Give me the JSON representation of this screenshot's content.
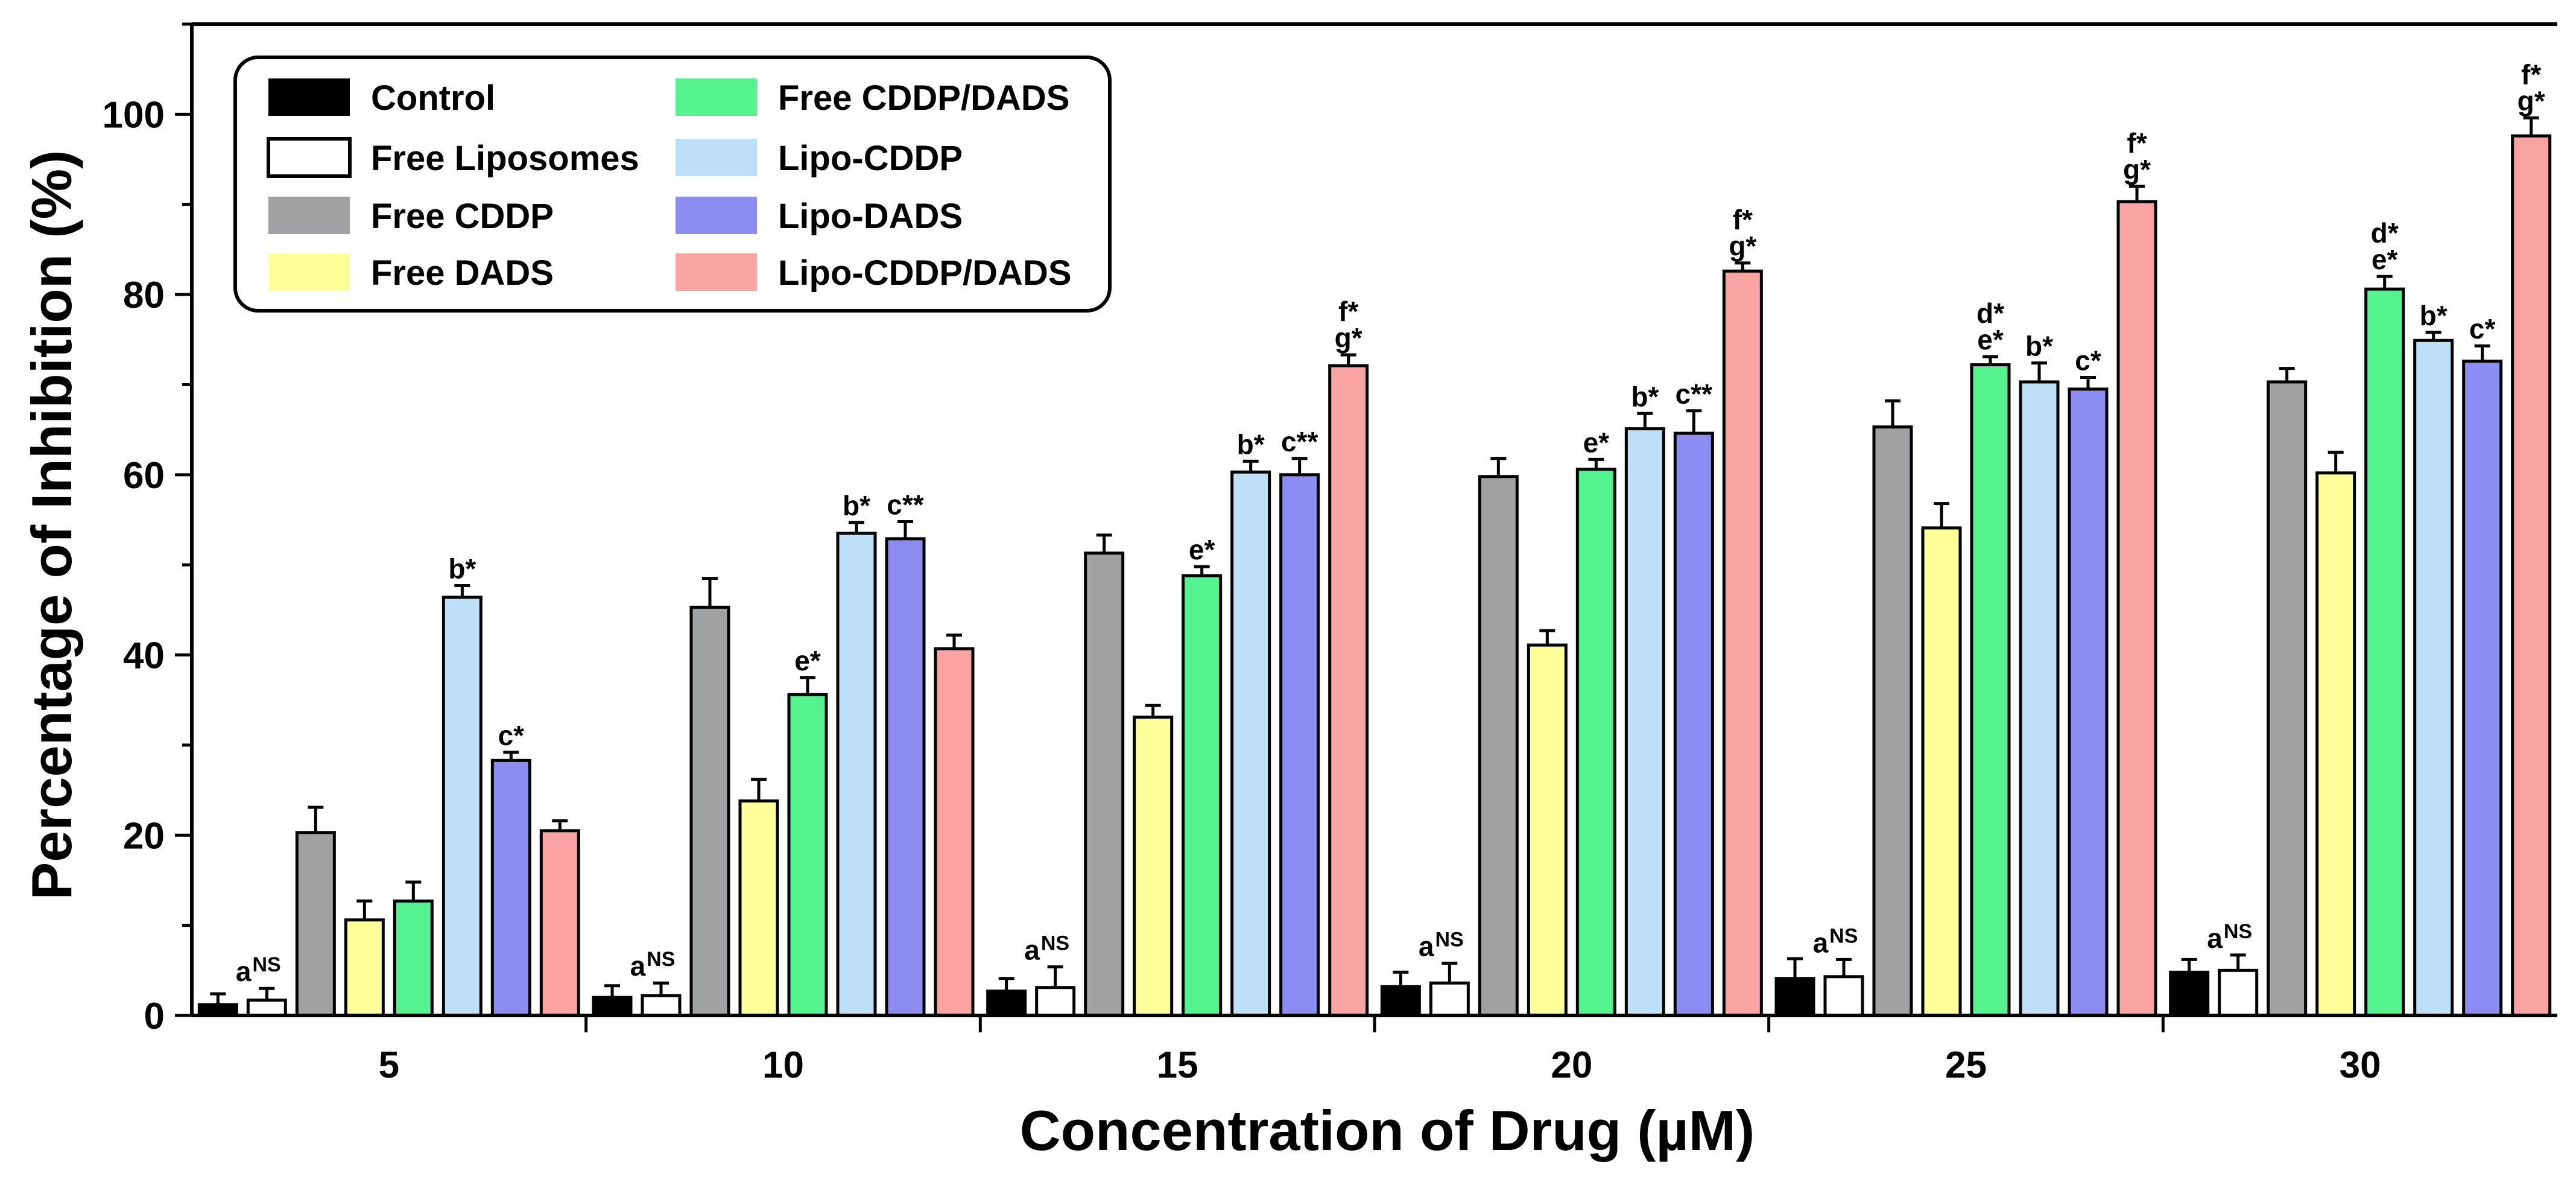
{
  "chart_data": {
    "type": "bar",
    "title": "",
    "xlabel": "Concentration of Drug (µM)",
    "ylabel": "Percentage of Inhibition (%)",
    "ylim": [
      0,
      110
    ],
    "yticks": [
      0,
      20,
      40,
      60,
      80,
      100
    ],
    "grid": false,
    "legend_position": "top-left",
    "categories": [
      "5",
      "10",
      "15",
      "20",
      "25",
      "30"
    ],
    "series": [
      {
        "name": "Control",
        "color": "#000000",
        "filled": true,
        "values": [
          1.2,
          2.0,
          2.7,
          3.2,
          4.1,
          4.8
        ],
        "errors": [
          1.2,
          1.3,
          1.4,
          1.6,
          2.2,
          1.4
        ]
      },
      {
        "name": "Free Liposomes",
        "color": "#ffffff",
        "filled": false,
        "values": [
          1.7,
          2.2,
          3.1,
          3.6,
          4.3,
          5.0
        ],
        "errors": [
          1.3,
          1.4,
          2.3,
          2.2,
          1.9,
          1.7
        ]
      },
      {
        "name": "Free CDDP",
        "color": "#a0a1a3",
        "values": [
          20.3,
          45.3,
          51.3,
          59.8,
          65.3,
          70.3
        ],
        "errors": [
          2.8,
          3.2,
          2.0,
          2.0,
          2.9,
          1.5
        ]
      },
      {
        "name": "Free DADS",
        "color": "#ffff99",
        "values": [
          10.6,
          23.8,
          33.1,
          41.1,
          54.1,
          60.2
        ],
        "errors": [
          2.1,
          2.4,
          1.3,
          1.6,
          2.7,
          2.3
        ]
      },
      {
        "name": "Free CDDP/DADS",
        "color": "#55f390",
        "values": [
          12.7,
          35.6,
          48.8,
          60.6,
          72.2,
          80.6
        ],
        "errors": [
          2.1,
          1.9,
          1.0,
          1.1,
          0.9,
          1.4
        ]
      },
      {
        "name": "Lipo-CDDP",
        "color": "#bedff8",
        "values": [
          46.4,
          53.5,
          60.3,
          65.1,
          70.3,
          74.9
        ],
        "errors": [
          1.3,
          1.2,
          1.2,
          1.7,
          2.1,
          0.9
        ]
      },
      {
        "name": "Lipo-DADS",
        "color": "#8c8cf2",
        "values": [
          28.3,
          52.9,
          60.0,
          64.6,
          69.5,
          72.6
        ],
        "errors": [
          0.9,
          1.9,
          1.8,
          2.5,
          1.3,
          1.7
        ]
      },
      {
        "name": "Lipo-CDDP/DADS",
        "color": "#f9a3a3",
        "values": [
          20.5,
          40.7,
          72.1,
          82.6,
          90.3,
          97.6
        ],
        "errors": [
          1.1,
          1.5,
          1.2,
          0.9,
          1.7,
          2.0
        ]
      }
    ],
    "annotations": [
      {
        "category": 0,
        "series": 1,
        "text": "a",
        "sup": "NS"
      },
      {
        "category": 0,
        "series": 5,
        "text": "b*"
      },
      {
        "category": 0,
        "series": 6,
        "text": "c*"
      },
      {
        "category": 1,
        "series": 1,
        "text": "a",
        "sup": "NS"
      },
      {
        "category": 1,
        "series": 4,
        "text": "e*"
      },
      {
        "category": 1,
        "series": 5,
        "text": "b*"
      },
      {
        "category": 1,
        "series": 6,
        "text": "c**"
      },
      {
        "category": 2,
        "series": 1,
        "text": "a",
        "sup": "NS"
      },
      {
        "category": 2,
        "series": 4,
        "text": "e*"
      },
      {
        "category": 2,
        "series": 5,
        "text": "b*"
      },
      {
        "category": 2,
        "series": 6,
        "text": "c**"
      },
      {
        "category": 2,
        "series": 7,
        "lines": [
          "f*",
          "g*"
        ]
      },
      {
        "category": 3,
        "series": 1,
        "text": "a",
        "sup": "NS"
      },
      {
        "category": 3,
        "series": 4,
        "text": "e*"
      },
      {
        "category": 3,
        "series": 5,
        "text": "b*"
      },
      {
        "category": 3,
        "series": 6,
        "text": "c**"
      },
      {
        "category": 3,
        "series": 7,
        "lines": [
          "f*",
          "g*"
        ]
      },
      {
        "category": 4,
        "series": 1,
        "text": "a",
        "sup": "NS"
      },
      {
        "category": 4,
        "series": 4,
        "lines": [
          "d*",
          "e*"
        ]
      },
      {
        "category": 4,
        "series": 5,
        "text": "b*"
      },
      {
        "category": 4,
        "series": 6,
        "text": "c*"
      },
      {
        "category": 4,
        "series": 7,
        "lines": [
          "f*",
          "g*"
        ]
      },
      {
        "category": 5,
        "series": 1,
        "text": "a",
        "sup": "NS"
      },
      {
        "category": 5,
        "series": 4,
        "lines": [
          "d*",
          "e*"
        ]
      },
      {
        "category": 5,
        "series": 5,
        "text": "b*"
      },
      {
        "category": 5,
        "series": 6,
        "text": "c*"
      },
      {
        "category": 5,
        "series": 7,
        "lines": [
          "f*",
          "g*"
        ]
      }
    ]
  }
}
